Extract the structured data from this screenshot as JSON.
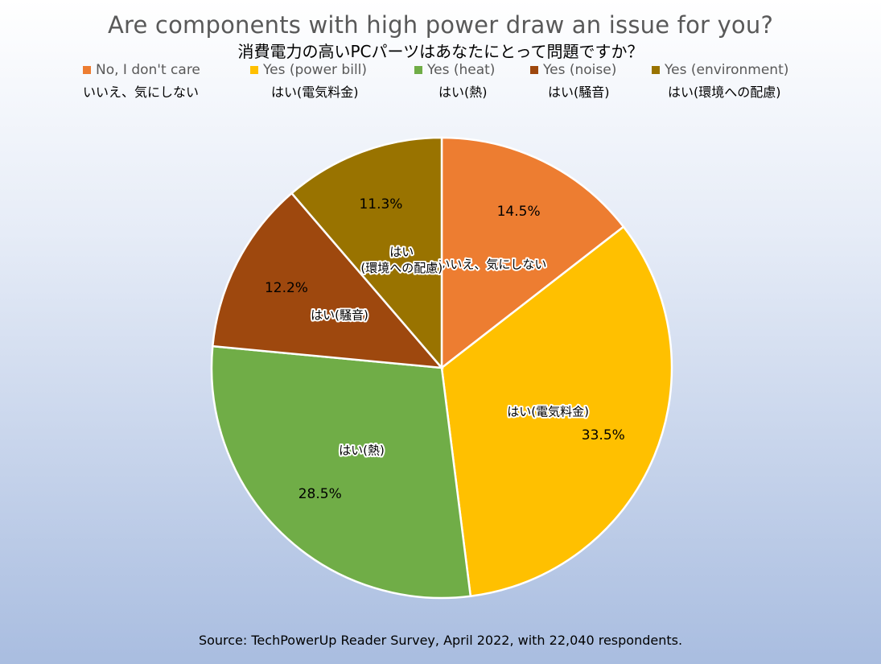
{
  "chart_data": {
    "type": "pie",
    "title": "Are components with high power draw an issue for you?",
    "subtitle": "消費電力の高いPCパーツはあなたにとって問題ですか？",
    "legend_position": "top",
    "source": "Source: TechPowerUp Reader Survey, April 2022, with 22,040 respondents.",
    "slices": [
      {
        "name": "No, I don't care",
        "name_ja": "いいえ、気にしない",
        "value": 14.5,
        "label": "14.5%",
        "slice_label_lines": [
          "いいえ、気にしない"
        ],
        "color": "#ed7d31"
      },
      {
        "name": "Yes (power bill)",
        "name_ja": "はい(電気料金)",
        "value": 33.5,
        "label": "33.5%",
        "slice_label_lines": [
          "はい(電気料金)"
        ],
        "color": "#ffc000"
      },
      {
        "name": "Yes (heat)",
        "name_ja": "はい(熱)",
        "value": 28.5,
        "label": "28.5%",
        "slice_label_lines": [
          "はい(熱)"
        ],
        "color": "#70ad47"
      },
      {
        "name": "Yes (noise)",
        "name_ja": "はい(騒音)",
        "value": 12.2,
        "label": "12.2%",
        "slice_label_lines": [
          "はい(騒音)"
        ],
        "color": "#9e480e"
      },
      {
        "name": "Yes (environment)",
        "name_ja": "はい(環境への配慮)",
        "value": 11.3,
        "label": "11.3%",
        "slice_label_lines": [
          "はい",
          "(環境への配慮)"
        ],
        "color": "#997300"
      }
    ]
  }
}
